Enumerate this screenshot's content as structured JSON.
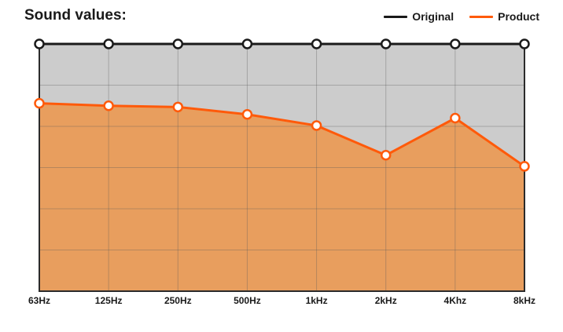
{
  "chart_data": {
    "type": "area",
    "title": "Sound values:",
    "categories": [
      "63Hz",
      "125Hz",
      "250Hz",
      "500Hz",
      "1kHz",
      "2kHz",
      "4Khz",
      "8kHz"
    ],
    "ylim": [
      0,
      100
    ],
    "grid": true,
    "legend_position": "top-right",
    "series": [
      {
        "name": "Original",
        "color": "#1a1a1a",
        "fill": "#cccccc",
        "values": [
          100,
          100,
          100,
          100,
          100,
          100,
          100,
          100
        ]
      },
      {
        "name": "Product",
        "color": "#ff5a0a",
        "fill": "#e89e5e",
        "values": [
          76,
          75,
          74.5,
          71.5,
          67,
          55,
          70,
          50.5
        ]
      }
    ]
  }
}
